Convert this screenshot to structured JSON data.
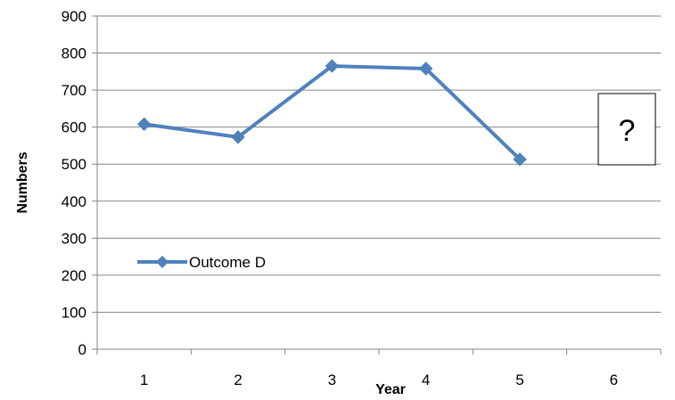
{
  "chart_data": {
    "type": "line",
    "title": "",
    "xlabel": "Year",
    "ylabel": "Numbers",
    "categories": [
      "1",
      "2",
      "3",
      "4",
      "5",
      "6"
    ],
    "series": [
      {
        "name": "Outcome D",
        "values": [
          608,
          573,
          765,
          758,
          513,
          null
        ],
        "color": "#4F81BD",
        "marker": "diamond"
      }
    ],
    "ylim": [
      0,
      900
    ],
    "yticks": [
      "0",
      "100",
      "200",
      "300",
      "400",
      "500",
      "600",
      "700",
      "800",
      "900"
    ],
    "grid": "horizontal",
    "legend_placement": "inside-bottom-left",
    "annotations": [
      {
        "text": "?",
        "category": "6",
        "boxed": true
      }
    ]
  },
  "colors": {
    "series": "#4F81BD",
    "grid": "#868686",
    "axis": "#868686"
  }
}
